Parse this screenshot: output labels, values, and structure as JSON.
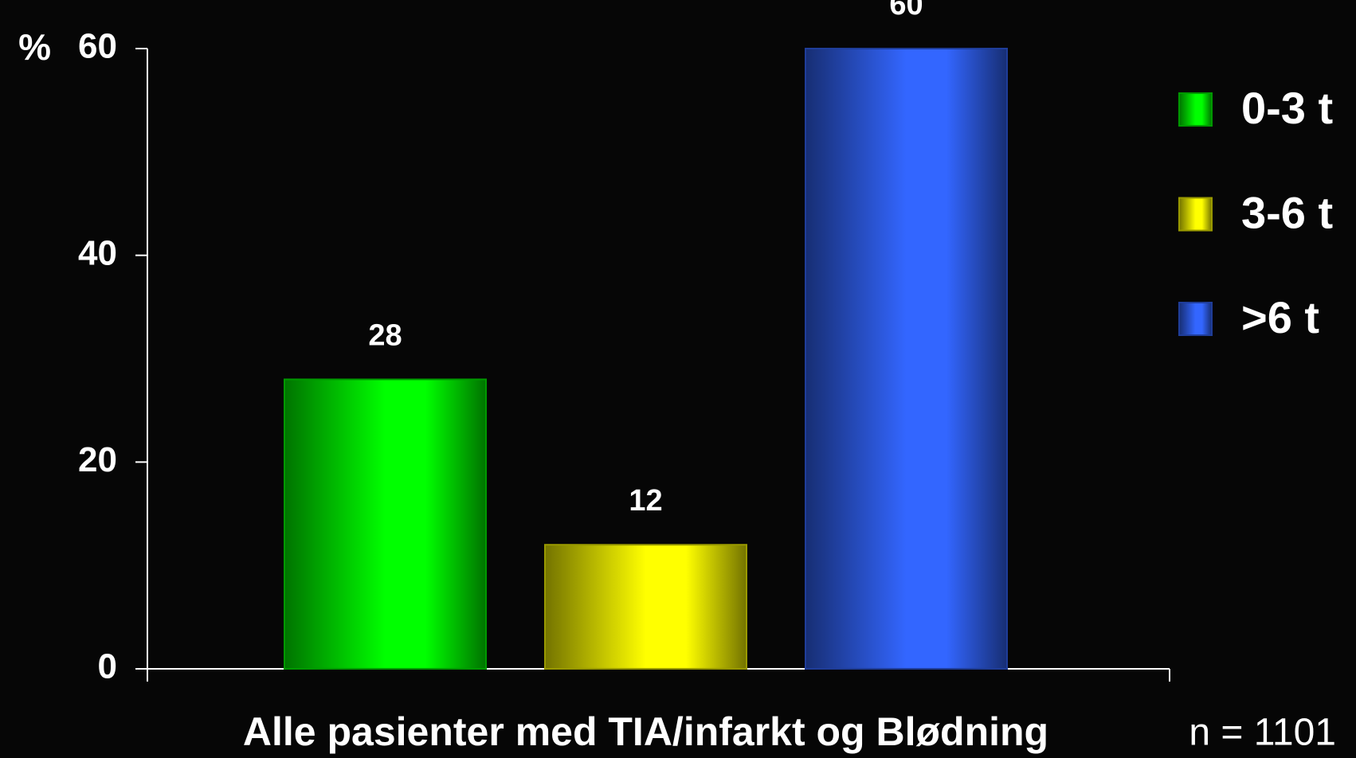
{
  "chart_data": {
    "type": "bar",
    "categories": [
      "Alle pasienter med TIA/infarkt og Blødning"
    ],
    "series": [
      {
        "name": "0-3 t",
        "color": "#00ff00",
        "values": [
          28
        ]
      },
      {
        "name": "3-6 t",
        "color": "#ffff00",
        "values": [
          12
        ]
      },
      {
        "name": ">6 t",
        "color": "#3366ff",
        "values": [
          60
        ]
      }
    ],
    "ylabel": "%",
    "annotation": "n = 1101",
    "ylim": [
      0,
      60
    ],
    "yticks": [
      0,
      20,
      40,
      60
    ],
    "grid": false,
    "legend": "right"
  }
}
